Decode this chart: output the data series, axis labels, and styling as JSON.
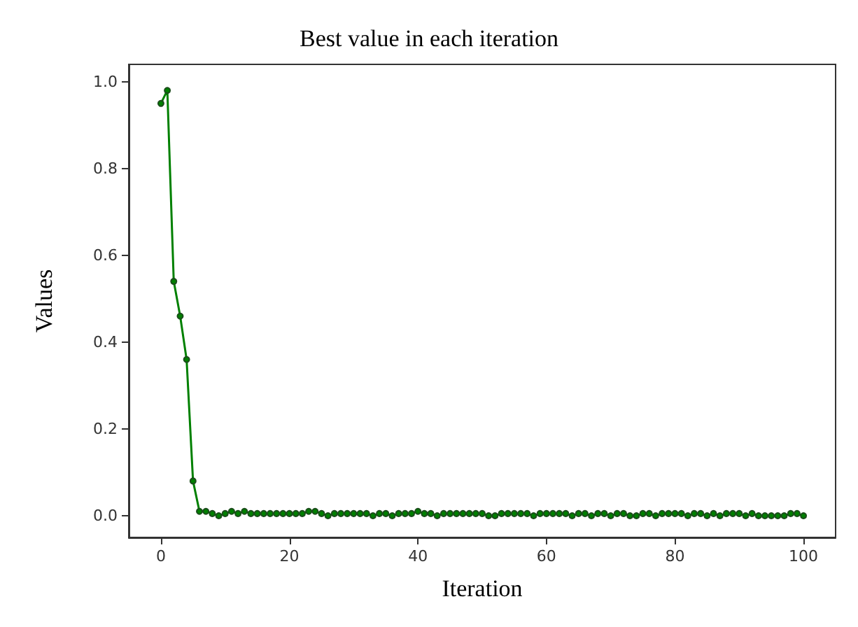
{
  "chart_data": {
    "type": "line",
    "title": "Best value in each iteration",
    "xlabel": "Iteration",
    "ylabel": "Values",
    "x": [
      0,
      1,
      2,
      3,
      4,
      5,
      6,
      7,
      8,
      9,
      10,
      11,
      12,
      13,
      14,
      15,
      16,
      17,
      18,
      19,
      20,
      21,
      22,
      23,
      24,
      25,
      26,
      27,
      28,
      29,
      30,
      31,
      32,
      33,
      34,
      35,
      36,
      37,
      38,
      39,
      40,
      41,
      42,
      43,
      44,
      45,
      46,
      47,
      48,
      49,
      50,
      51,
      52,
      53,
      54,
      55,
      56,
      57,
      58,
      59,
      60,
      61,
      62,
      63,
      64,
      65,
      66,
      67,
      68,
      69,
      70,
      71,
      72,
      73,
      74,
      75,
      76,
      77,
      78,
      79,
      80,
      81,
      82,
      83,
      84,
      85,
      86,
      87,
      88,
      89,
      90,
      91,
      92,
      93,
      94,
      95,
      96,
      97,
      98,
      99,
      100
    ],
    "series": [
      {
        "color": "#008000",
        "values": [
          0.95,
          0.98,
          0.54,
          0.46,
          0.36,
          0.08,
          0.01,
          0.01,
          0.005,
          0.0,
          0.005,
          0.01,
          0.005,
          0.01,
          0.005,
          0.005,
          0.005,
          0.005,
          0.005,
          0.005,
          0.005,
          0.005,
          0.005,
          0.01,
          0.01,
          0.005,
          0.0,
          0.005,
          0.005,
          0.005,
          0.005,
          0.005,
          0.005,
          0.0,
          0.005,
          0.005,
          0.0,
          0.005,
          0.005,
          0.005,
          0.01,
          0.005,
          0.005,
          0.0,
          0.005,
          0.005,
          0.005,
          0.005,
          0.005,
          0.005,
          0.005,
          0.0,
          0.0,
          0.005,
          0.005,
          0.005,
          0.005,
          0.005,
          0.0,
          0.005,
          0.005,
          0.005,
          0.005,
          0.005,
          0.0,
          0.005,
          0.005,
          0.0,
          0.005,
          0.005,
          0.0,
          0.005,
          0.005,
          0.0,
          0.0,
          0.005,
          0.005,
          0.0,
          0.005,
          0.005,
          0.005,
          0.005,
          0.0,
          0.005,
          0.005,
          0.0,
          0.005,
          0.0,
          0.005,
          0.005,
          0.005,
          0.0,
          0.005,
          0.0,
          0.0,
          0.0,
          0.0,
          0.0,
          0.005,
          0.005,
          0.0
        ]
      }
    ],
    "xlim": [
      -5,
      105
    ],
    "xticks": [
      0,
      20,
      40,
      60,
      80,
      100
    ],
    "ylim": [
      -0.05,
      1.04
    ],
    "yticks": [
      {
        "value": 0,
        "label": "0.0"
      },
      0.2,
      0.4,
      0.6,
      0.8,
      {
        "value": 1,
        "label": "1.0"
      }
    ],
    "grid": false,
    "marker": "circle",
    "line_style": "solid"
  }
}
